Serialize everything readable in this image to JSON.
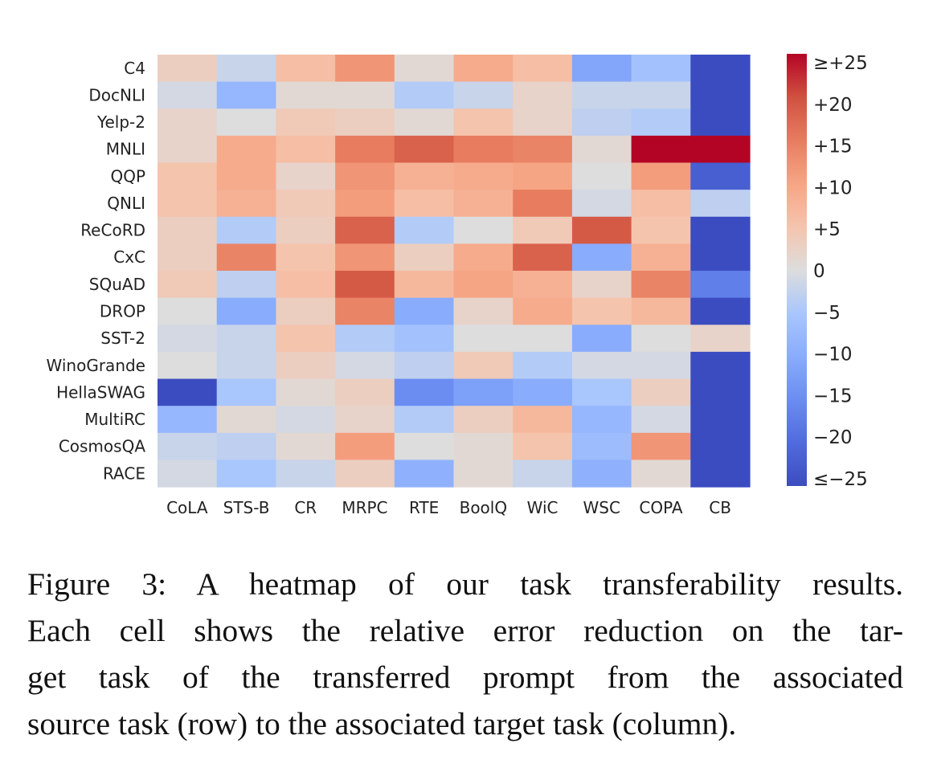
{
  "chart_data": {
    "type": "heatmap",
    "title": "",
    "xlabel": "",
    "ylabel": "",
    "rows": [
      "C4",
      "DocNLI",
      "Yelp-2",
      "MNLI",
      "QQP",
      "QNLI",
      "ReCoRD",
      "CxC",
      "SQuAD",
      "DROP",
      "SST-2",
      "WinoGrande",
      "HellaSWAG",
      "MultiRC",
      "CosmosQA",
      "RACE"
    ],
    "columns": [
      "CoLA",
      "STS-B",
      "CR",
      "MRPC",
      "RTE",
      "BoolQ",
      "WiC",
      "WSC",
      "COPA",
      "CB"
    ],
    "values": [
      [
        3,
        -2,
        6,
        12,
        1,
        9,
        6,
        -11,
        -6,
        -25
      ],
      [
        -1,
        -8,
        1,
        1,
        -4,
        -2,
        2,
        -2,
        -2,
        -25
      ],
      [
        2,
        0,
        4,
        3,
        1,
        5,
        2,
        -3,
        -4,
        -25
      ],
      [
        2,
        9,
        6,
        15,
        18,
        15,
        14,
        1,
        25,
        25
      ],
      [
        5,
        9,
        2,
        12,
        8,
        9,
        10,
        0,
        11,
        -22
      ],
      [
        5,
        8,
        4,
        11,
        6,
        8,
        15,
        -1,
        6,
        -3
      ],
      [
        3,
        -4,
        3,
        18,
        -4,
        0,
        4,
        19,
        5,
        -25
      ],
      [
        3,
        14,
        5,
        12,
        3,
        9,
        18,
        -10,
        8,
        -25
      ],
      [
        4,
        -3,
        6,
        19,
        7,
        10,
        8,
        2,
        14,
        -17
      ],
      [
        0,
        -10,
        3,
        14,
        -10,
        2,
        9,
        5,
        7,
        -25
      ],
      [
        -1,
        -2,
        5,
        -4,
        -6,
        0,
        0,
        -10,
        0,
        2
      ],
      [
        0,
        -2,
        3,
        -1,
        -3,
        4,
        -4,
        -1,
        -1,
        -25
      ],
      [
        -25,
        -5,
        1,
        3,
        -15,
        -12,
        -10,
        -5,
        3,
        -25
      ],
      [
        -8,
        1,
        -1,
        2,
        -4,
        3,
        7,
        -8,
        -1,
        -25
      ],
      [
        -2,
        -3,
        1,
        11,
        0,
        1,
        5,
        -7,
        12,
        -25
      ],
      [
        -1,
        -5,
        -2,
        3,
        -9,
        1,
        -2,
        -9,
        1,
        -25
      ]
    ],
    "vmin": -25,
    "vmax": 25,
    "colormap": "coolwarm",
    "colorbar": {
      "ticks": [
        25,
        20,
        15,
        10,
        5,
        0,
        -5,
        -10,
        -15,
        -20,
        -25
      ],
      "tick_labels": [
        "≥+25",
        "+20",
        "+15",
        "+10",
        "+5",
        "0",
        "−5",
        "−10",
        "−15",
        "−20",
        "≤−25"
      ]
    },
    "grid": false,
    "legend": "colorbar-right"
  },
  "caption": {
    "lines": [
      "Figure 3:  A heatmap of our task transferability results.",
      "Each cell shows the relative error reduction on the tar-",
      "get task of the transferred prompt from the associated",
      "source task (row) to the associated target task (column)."
    ]
  }
}
